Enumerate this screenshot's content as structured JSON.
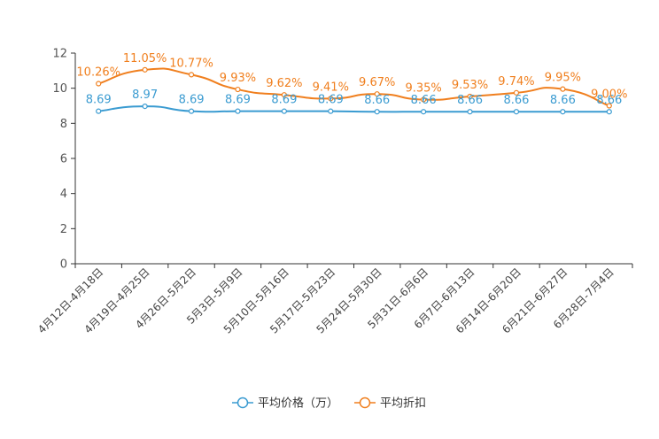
{
  "chart_data": {
    "type": "line",
    "title": "",
    "xlabel": "",
    "ylabel": "",
    "ylim": [
      0,
      12
    ],
    "yticks": [
      0,
      2,
      4,
      6,
      8,
      10,
      12
    ],
    "grid": false,
    "legend_position": "bottom-center",
    "categories": [
      "4月12日-4月18日",
      "4月19日-4月25日",
      "4月26日-5月2日",
      "5月3日-5月9日",
      "5月10日-5月16日",
      "5月17日-5月23日",
      "5月24日-5月30日",
      "5月31日-6月6日",
      "6月7日-6月13日",
      "6月14日-6月20日",
      "6月21日-6月27日",
      "6月28日-7月4日"
    ],
    "series": [
      {
        "name": "平均价格（万）",
        "color": "#3a9bd1",
        "values": [
          8.69,
          8.97,
          8.69,
          8.69,
          8.69,
          8.69,
          8.66,
          8.66,
          8.66,
          8.66,
          8.66,
          8.66
        ],
        "labels": [
          "8.69",
          "8.97",
          "8.69",
          "8.69",
          "8.69",
          "8.69",
          "8.66",
          "8.66",
          "8.66",
          "8.66",
          "8.66",
          "8.66"
        ]
      },
      {
        "name": "平均折扣",
        "color": "#f07f1e",
        "values": [
          10.26,
          11.05,
          10.77,
          9.93,
          9.62,
          9.41,
          9.67,
          9.35,
          9.53,
          9.74,
          9.95,
          9.0
        ],
        "labels": [
          "10.26%",
          "11.05%",
          "10.77%",
          "9.93%",
          "9.62%",
          "9.41%",
          "9.67%",
          "9.35%",
          "9.53%",
          "9.74%",
          "9.95%",
          "9.00%"
        ]
      }
    ]
  }
}
